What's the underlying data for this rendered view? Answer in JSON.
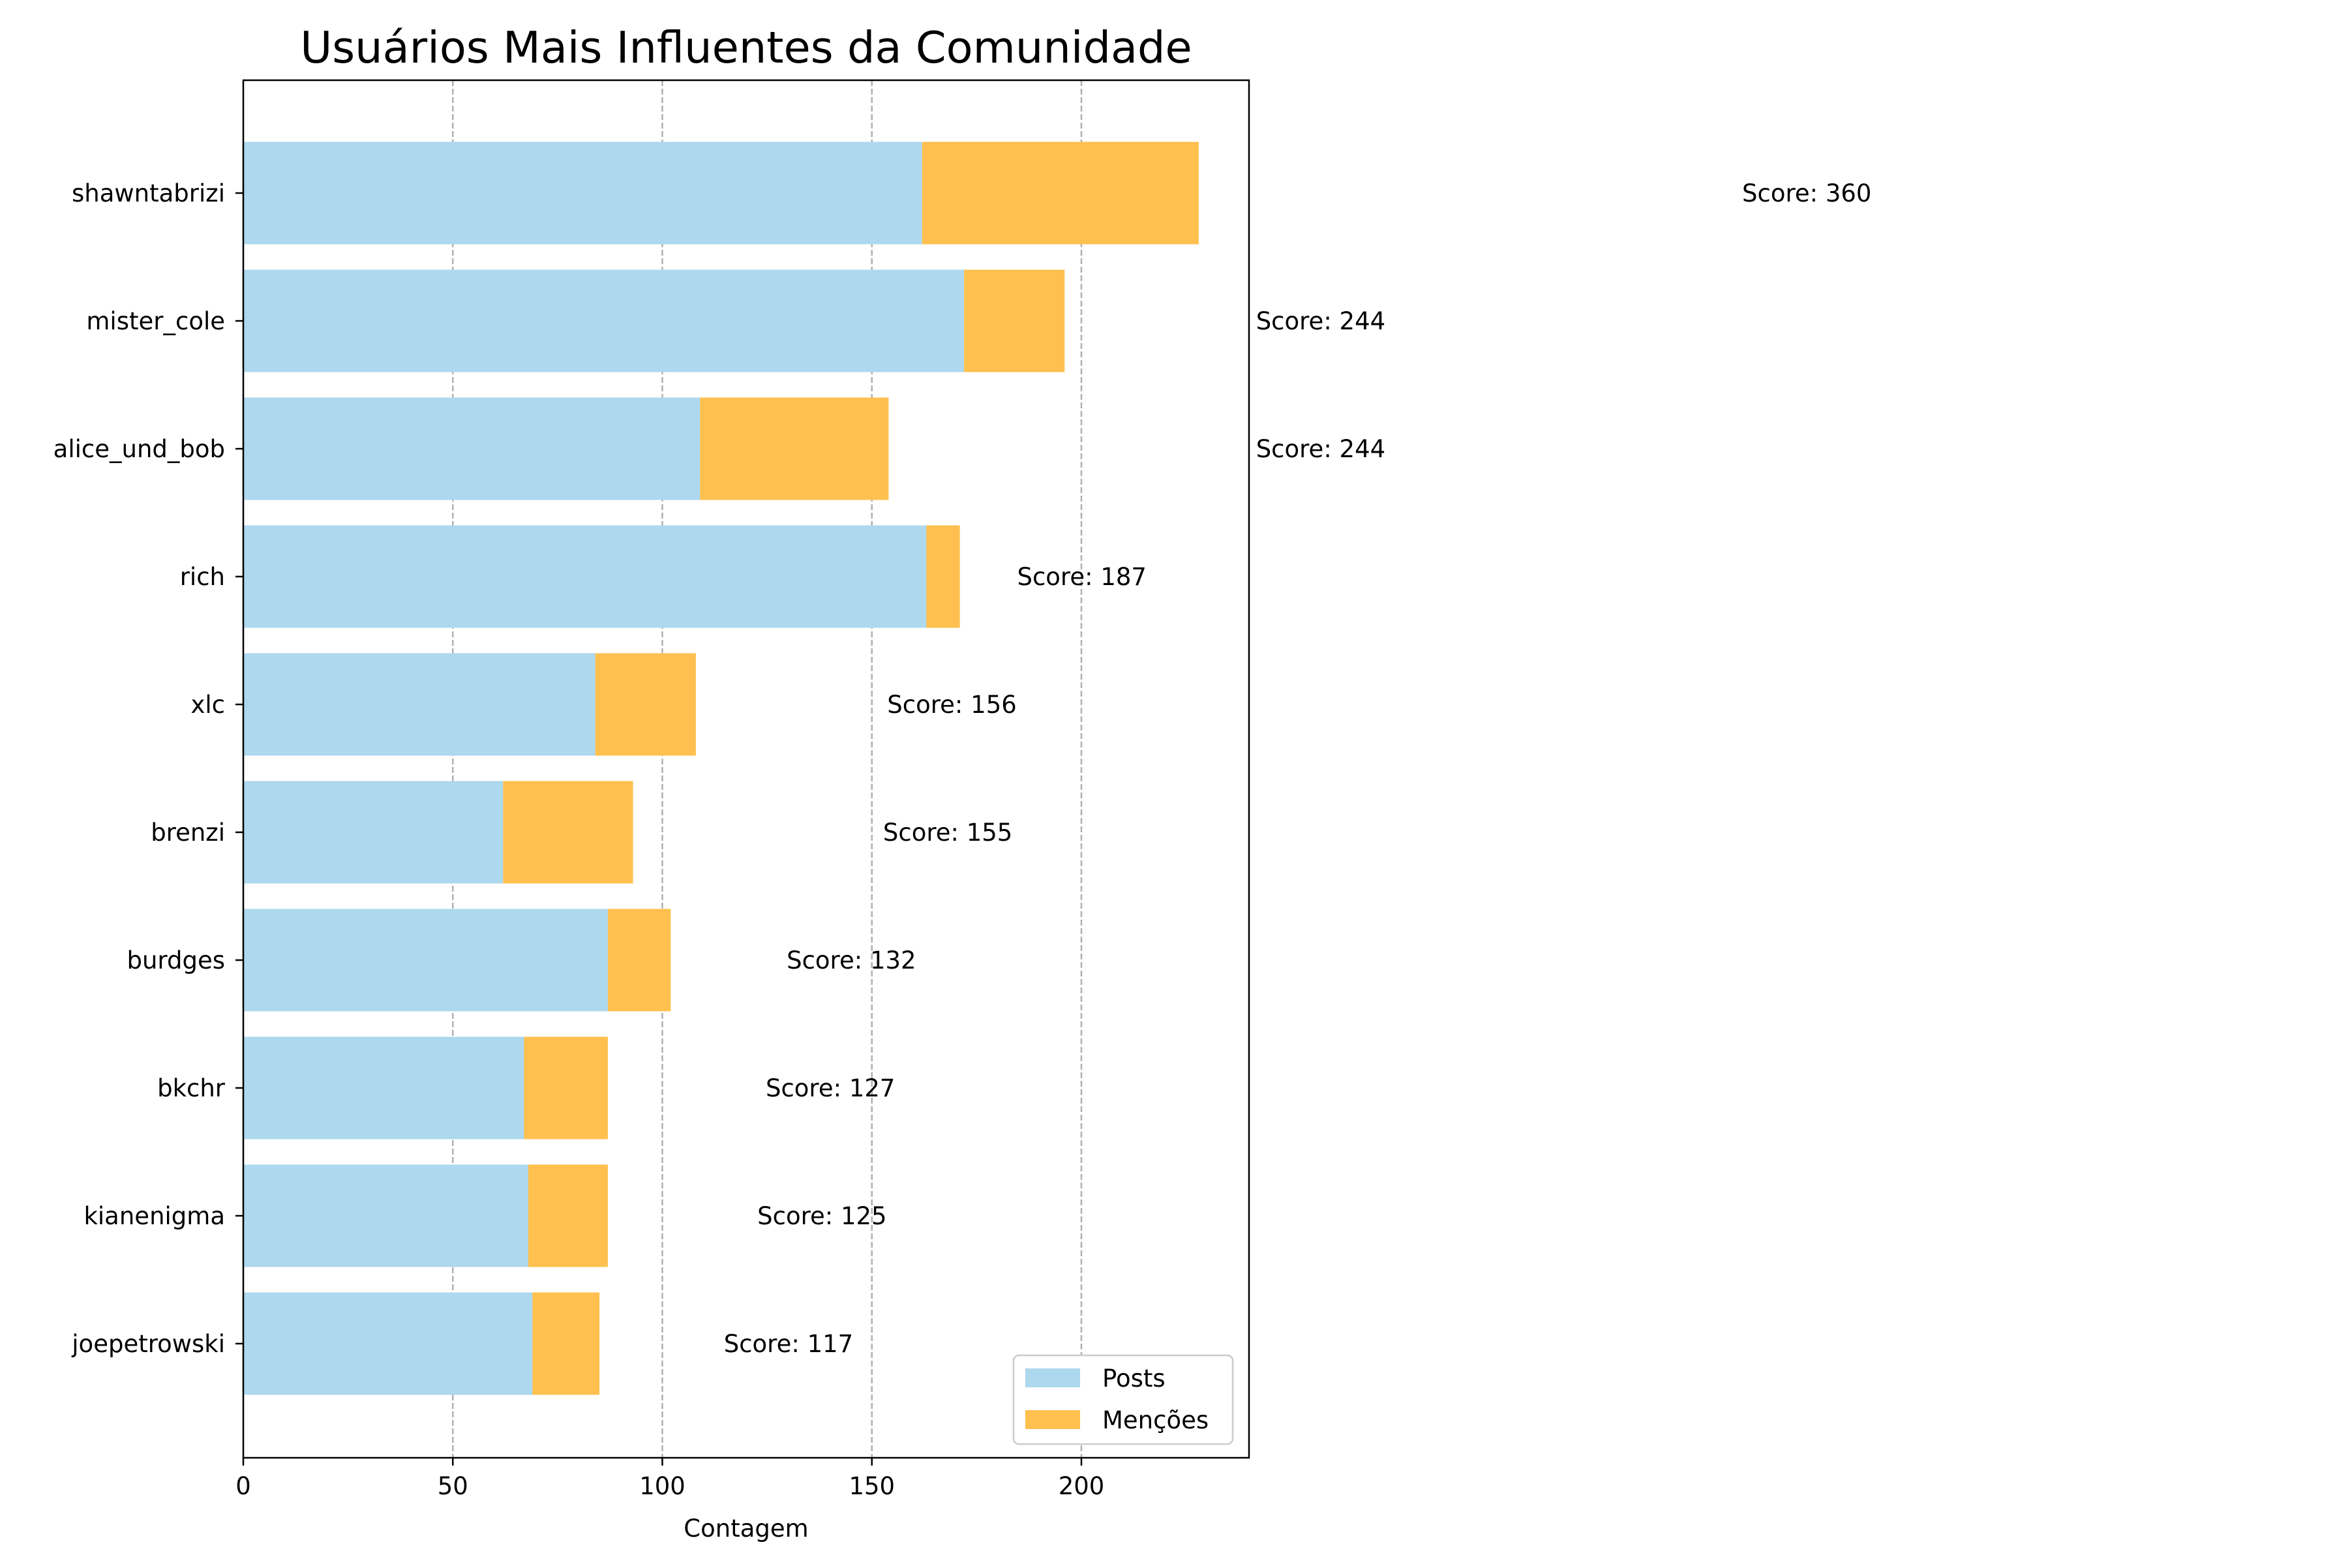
{
  "chart_data": {
    "type": "bar",
    "orientation": "horizontal",
    "stacked": true,
    "title": "Usuários Mais Influentes da Comunidade",
    "xlabel": "Contagem",
    "ylabel": "",
    "xlim": [
      0,
      240
    ],
    "xticks": [
      0,
      50,
      100,
      150,
      200
    ],
    "grid": "vertical dashed",
    "legend_position": "bottom-right",
    "categories": [
      "shawntabrizi",
      "mister_cole",
      "alice_und_bob",
      "rich",
      "xlc",
      "brenzi",
      "burdges",
      "bkchr",
      "kianenigma",
      "joepetrowski"
    ],
    "series": [
      {
        "name": "Posts",
        "color": "#add8ee",
        "values": [
          162,
          172,
          109,
          163,
          84,
          62,
          87,
          67,
          68,
          69
        ]
      },
      {
        "name": "Menções",
        "color": "#ffc04f",
        "values": [
          66,
          24,
          45,
          8,
          24,
          31,
          15,
          20,
          19,
          16
        ]
      }
    ],
    "score_labels": [
      "Score: 360",
      "Score: 244",
      "Score: 244",
      "Score: 187",
      "Score: 156",
      "Score: 155",
      "Score: 132",
      "Score: 127",
      "Score: 125",
      "Score: 117"
    ],
    "score_values": [
      360,
      244,
      244,
      187,
      156,
      155,
      132,
      127,
      125,
      117
    ]
  }
}
